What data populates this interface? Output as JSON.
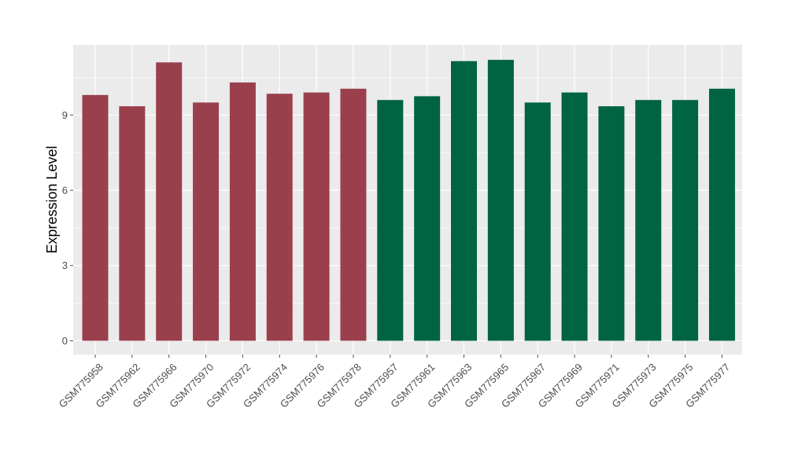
{
  "chart_data": {
    "type": "bar",
    "title": "",
    "xlabel": "",
    "ylabel": "Expression Level",
    "ylim": [
      -0.55,
      11.8
    ],
    "yticks": [
      0,
      3,
      6,
      9
    ],
    "grid": true,
    "legend": "none",
    "panel_background": "#ebebeb",
    "grid_color": "#ffffff",
    "tick_color": "#4d4d4d",
    "categories": [
      "GSM775958",
      "GSM775962",
      "GSM775966",
      "GSM775970",
      "GSM775972",
      "GSM775974",
      "GSM775976",
      "GSM775978",
      "GSM775957",
      "GSM775961",
      "GSM775963",
      "GSM775965",
      "GSM775967",
      "GSM775969",
      "GSM775971",
      "GSM775973",
      "GSM775975",
      "GSM775977"
    ],
    "values": [
      9.8,
      9.35,
      11.1,
      9.5,
      10.3,
      9.85,
      9.9,
      10.05,
      9.6,
      9.75,
      11.15,
      11.2,
      9.5,
      9.9,
      9.35,
      9.6,
      9.6,
      10.05
    ],
    "colors": [
      "#9a404d",
      "#9a404d",
      "#9a404d",
      "#9a404d",
      "#9a404d",
      "#9a404d",
      "#9a404d",
      "#9a404d",
      "#006442",
      "#006442",
      "#006442",
      "#006442",
      "#006442",
      "#006442",
      "#006442",
      "#006442",
      "#006442",
      "#006442"
    ]
  }
}
